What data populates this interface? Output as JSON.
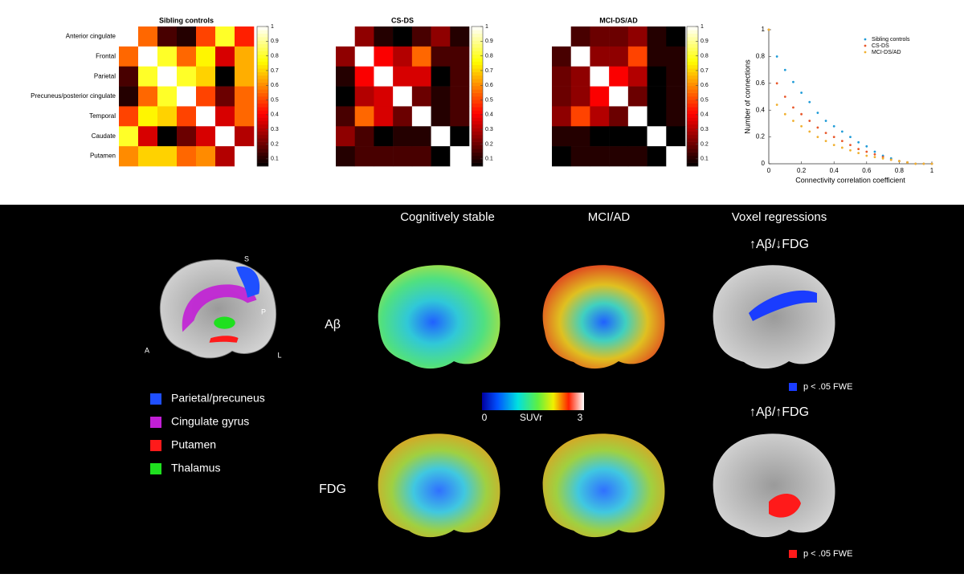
{
  "chart_data": [
    {
      "type": "heatmap",
      "title": "Sibling controls",
      "colormap": "hot",
      "categories": [
        "Anterior cingulate",
        "Frontal",
        "Parietal",
        "Precuneus/posterior cingulate",
        "Temporal",
        "Caudate",
        "Putamen"
      ],
      "values": [
        [
          1,
          0.55,
          0.15,
          0.1,
          0.5,
          0.8,
          0.45
        ],
        [
          0.55,
          1,
          0.8,
          0.55,
          0.75,
          0.35,
          0.65
        ],
        [
          0.15,
          0.8,
          1,
          0.8,
          0.7,
          0.05,
          0.65
        ],
        [
          0.1,
          0.55,
          0.8,
          1,
          0.5,
          0.2,
          0.55
        ],
        [
          0.5,
          0.75,
          0.7,
          0.5,
          1,
          0.35,
          0.55
        ],
        [
          0.8,
          0.35,
          0.05,
          0.2,
          0.35,
          1,
          0.3
        ],
        [
          0.6,
          0.7,
          0.7,
          0.55,
          0.6,
          0.3,
          1
        ]
      ],
      "clim": [
        0.05,
        1
      ],
      "cticks": [
        0.1,
        0.2,
        0.3,
        0.4,
        0.5,
        0.6,
        0.7,
        0.8,
        0.9,
        1
      ]
    },
    {
      "type": "heatmap",
      "title": "CS-DS",
      "colormap": "hot",
      "values": [
        [
          1,
          0.25,
          0.1,
          0.05,
          0.15,
          0.25,
          0.1
        ],
        [
          0.25,
          1,
          0.4,
          0.3,
          0.55,
          0.15,
          0.15
        ],
        [
          0.1,
          0.4,
          1,
          0.35,
          0.35,
          0.05,
          0.15
        ],
        [
          0.05,
          0.3,
          0.35,
          1,
          0.2,
          0.1,
          0.15
        ],
        [
          0.15,
          0.55,
          0.35,
          0.2,
          1,
          0.1,
          0.15
        ],
        [
          0.25,
          0.15,
          0.05,
          0.1,
          0.1,
          1,
          0.05
        ],
        [
          0.1,
          0.15,
          0.15,
          0.15,
          0.15,
          0.05,
          1
        ]
      ],
      "clim": [
        0.05,
        1
      ],
      "cticks": [
        0.1,
        0.2,
        0.3,
        0.4,
        0.5,
        0.6,
        0.7,
        0.8,
        0.9,
        1
      ]
    },
    {
      "type": "heatmap",
      "title": "MCI-DS/AD",
      "colormap": "hot",
      "values": [
        [
          1,
          0.15,
          0.2,
          0.2,
          0.25,
          0.1,
          0.05
        ],
        [
          0.15,
          1,
          0.25,
          0.25,
          0.5,
          0.1,
          0.1
        ],
        [
          0.2,
          0.25,
          1,
          0.4,
          0.3,
          0.05,
          0.1
        ],
        [
          0.2,
          0.25,
          0.4,
          1,
          0.2,
          0.05,
          0.1
        ],
        [
          0.25,
          0.5,
          0.3,
          0.2,
          1,
          0.05,
          0.1
        ],
        [
          0.1,
          0.1,
          0.05,
          0.05,
          0.05,
          1,
          0.05
        ],
        [
          0.05,
          0.1,
          0.1,
          0.1,
          0.1,
          0.05,
          1
        ]
      ],
      "clim": [
        0.05,
        1
      ],
      "cticks": [
        0.1,
        0.2,
        0.3,
        0.4,
        0.5,
        0.6,
        0.7,
        0.8,
        0.9,
        1
      ]
    },
    {
      "type": "scatter",
      "x_label": "Connectivity correlation coefficient",
      "y_label": "Number of connections",
      "x": [
        0,
        0.05,
        0.1,
        0.15,
        0.2,
        0.25,
        0.3,
        0.35,
        0.4,
        0.45,
        0.5,
        0.55,
        0.6,
        0.65,
        0.7,
        0.75,
        0.8,
        0.85,
        0.9,
        0.95,
        1
      ],
      "series": [
        {
          "name": "Sibling controls",
          "color": "#1f9bd7",
          "values": [
            1,
            0.8,
            0.7,
            0.61,
            0.53,
            0.46,
            0.38,
            0.32,
            0.28,
            0.24,
            0.2,
            0.16,
            0.13,
            0.09,
            0.06,
            0.04,
            0.02,
            0.01,
            0,
            0,
            0
          ]
        },
        {
          "name": "CS-DS",
          "color": "#e8572a",
          "values": [
            1,
            0.6,
            0.5,
            0.42,
            0.37,
            0.32,
            0.27,
            0.23,
            0.2,
            0.17,
            0.14,
            0.11,
            0.09,
            0.07,
            0.05,
            0.03,
            0.02,
            0.01,
            0,
            0,
            0
          ]
        },
        {
          "name": "MCI-DS/AD",
          "color": "#f0b030",
          "values": [
            1,
            0.44,
            0.37,
            0.32,
            0.28,
            0.24,
            0.2,
            0.17,
            0.14,
            0.12,
            0.1,
            0.08,
            0.06,
            0.05,
            0.04,
            0.03,
            0.02,
            0.01,
            0,
            0,
            0
          ]
        }
      ],
      "xlim": [
        0,
        1
      ],
      "ylim": [
        0,
        1
      ],
      "xticks": [
        0,
        0.2,
        0.4,
        0.6,
        0.8,
        1
      ],
      "yticks": [
        0,
        0.2,
        0.4,
        0.6,
        0.8,
        1
      ],
      "legend": "upper right"
    }
  ],
  "brain_panel": {
    "columns": [
      "Cognitively stable",
      "MCI/AD",
      "Voxel regressions"
    ],
    "rows": [
      "Aβ",
      "FDG"
    ],
    "contrasts": [
      "↑Aβ/↓FDG",
      "↑Aβ/↑FDG"
    ],
    "significance": [
      {
        "label": "p < .05 FWE",
        "color": "#1a3cff"
      },
      {
        "label": "p < .05 FWE",
        "color": "#ff1a1a"
      }
    ],
    "colorbar": {
      "min": 0,
      "label": "SUVr",
      "max": 3
    },
    "regions": [
      {
        "name": "Parietal/precuneus",
        "color": "#1f4fff"
      },
      {
        "name": "Cingulate gyrus",
        "color": "#c21fd6"
      },
      {
        "name": "Putamen",
        "color": "#ff1a1a"
      },
      {
        "name": "Thalamus",
        "color": "#1fe01f"
      }
    ],
    "orientation": [
      "S",
      "P",
      "L",
      "A"
    ]
  }
}
